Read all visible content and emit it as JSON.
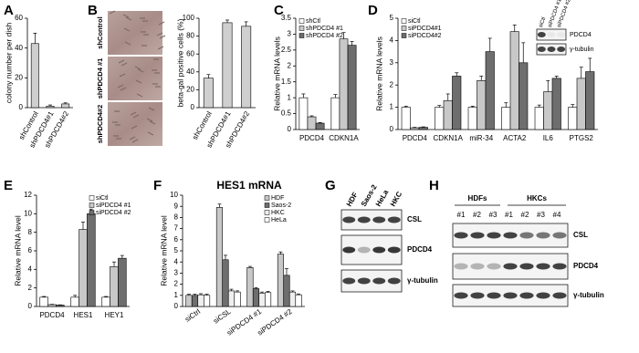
{
  "chart_data": [
    {
      "type": "bar",
      "panel": "A",
      "ylabel": "colony number per dish",
      "categories": [
        "shControl",
        "shPDCD4#1",
        "shPDCD4#2"
      ],
      "values": [
        43,
        1,
        2.5
      ],
      "errors": [
        7,
        0.8,
        0.7
      ],
      "color": "#cfcfcf",
      "ylim": [
        0,
        60
      ],
      "yticks": [
        0,
        20,
        40,
        60
      ]
    },
    {
      "type": "bar",
      "panel": "B",
      "ylabel": "beta-gal positive cells (%)",
      "categories": [
        "shControl",
        "shPDCD4#1",
        "shPDCD4#2"
      ],
      "values": [
        33,
        95,
        91
      ],
      "errors": [
        4,
        3,
        5
      ],
      "color": "#cfcfcf",
      "ylim": [
        0,
        100
      ],
      "yticks": [
        0,
        20,
        40,
        60,
        80,
        100
      ]
    },
    {
      "type": "bar",
      "panel": "C",
      "ylabel": "Relative mRNA levels",
      "categories": [
        "PDCD4",
        "CDKN1A"
      ],
      "legend": "upper left",
      "ylim": [
        0,
        3.5
      ],
      "yticks": [
        0,
        0.5,
        1,
        1.5,
        2,
        2.5,
        3,
        3.5
      ],
      "series": [
        {
          "name": "shCtl",
          "color": "#ffffff",
          "values": [
            1,
            1
          ],
          "errors": [
            0.12,
            0.1
          ]
        },
        {
          "name": "shPDCD4 #1",
          "color": "#c8c8c8",
          "values": [
            0.4,
            2.85
          ],
          "errors": [
            0.03,
            0.2
          ]
        },
        {
          "name": "shPDCD4 #2",
          "color": "#6e6e6e",
          "values": [
            0.2,
            2.65
          ],
          "errors": [
            0.02,
            0.12
          ]
        }
      ]
    },
    {
      "type": "bar",
      "panel": "D",
      "ylabel": "Relative mRNA levels",
      "categories": [
        "PDCD4",
        "CDKN1A",
        "miR-34",
        "ACTA2",
        "IL6",
        "PTGS2"
      ],
      "legend": "upper left",
      "ylim": [
        0,
        5
      ],
      "yticks": [
        0,
        1,
        2,
        3,
        4,
        5
      ],
      "series": [
        {
          "name": "siCtl",
          "color": "#ffffff",
          "values": [
            1,
            1,
            1,
            1,
            1,
            1
          ],
          "errors": [
            0.05,
            0.08,
            0.05,
            0.2,
            0.1,
            0.12
          ]
        },
        {
          "name": "siPDCD4#1",
          "color": "#c8c8c8",
          "values": [
            0.08,
            1.3,
            2.2,
            4.4,
            1.7,
            2.3
          ],
          "errors": [
            0.02,
            0.3,
            0.2,
            0.3,
            0.5,
            0.5
          ]
        },
        {
          "name": "siPDCD4#2",
          "color": "#6e6e6e",
          "values": [
            0.1,
            2.4,
            3.5,
            3.0,
            2.3,
            2.6
          ],
          "errors": [
            0.02,
            0.15,
            0.6,
            0.9,
            0.1,
            0.6
          ]
        }
      ]
    },
    {
      "type": "bar",
      "panel": "E",
      "ylabel": "Relative mRNA level",
      "categories": [
        "PDCD4",
        "HES1",
        "HEY1"
      ],
      "legend": "upper right",
      "ylim": [
        0,
        12
      ],
      "yticks": [
        0,
        2,
        4,
        6,
        8,
        10,
        12
      ],
      "series": [
        {
          "name": "siCtl",
          "color": "#ffffff",
          "values": [
            1,
            1,
            1
          ],
          "errors": [
            0.08,
            0.2,
            0.08
          ]
        },
        {
          "name": "siPDCD4 #1",
          "color": "#c8c8c8",
          "values": [
            0.2,
            8.3,
            4.3
          ],
          "errors": [
            0.03,
            0.8,
            0.5
          ]
        },
        {
          "name": "siPDCD4 #2",
          "color": "#6e6e6e",
          "values": [
            0.15,
            10,
            5.2
          ],
          "errors": [
            0.03,
            0.5,
            0.3
          ]
        }
      ]
    },
    {
      "type": "bar",
      "panel": "F",
      "title": "HES1 mRNA",
      "ylabel": "Relative mRNA level",
      "categories": [
        "siCtrl",
        "siCSL",
        "siPDCD4 #1",
        "siPDCD4 #2"
      ],
      "legend": "upper right",
      "ylim": [
        0,
        10
      ],
      "yticks": [
        0,
        1,
        2,
        3,
        4,
        5,
        6,
        7,
        8,
        9,
        10
      ],
      "series": [
        {
          "name": "HDF",
          "color": "#c8c8c8",
          "values": [
            1,
            8.9,
            3.5,
            4.7
          ],
          "errors": [
            0.1,
            0.3,
            0.1,
            0.2
          ]
        },
        {
          "name": "Saos-2",
          "color": "#6e6e6e",
          "values": [
            1,
            4.2,
            1.6,
            2.8
          ],
          "errors": [
            0.1,
            0.4,
            0.1,
            0.6
          ]
        },
        {
          "name": "HKC",
          "color": "#efefef",
          "values": [
            1.05,
            1.4,
            1.2,
            1.3
          ],
          "errors": [
            0.1,
            0.15,
            0.1,
            0.1
          ]
        },
        {
          "name": "HeLa",
          "color": "#ffffff",
          "values": [
            1,
            1.3,
            1.25,
            1.05
          ],
          "errors": [
            0.1,
            0.1,
            0.1,
            0.08
          ]
        }
      ]
    }
  ],
  "images": {
    "rows": [
      "shControl",
      "shPDCD4 #1",
      "shPDCD4#2"
    ]
  },
  "inset": {
    "lanes": [
      "siCtl",
      "siPDCD4 #1",
      "siPDCD4 #2"
    ],
    "rows": [
      "PDCD4",
      "γ-tubulin"
    ]
  },
  "blots": [
    {
      "panel": "G",
      "lanes": [
        "HDF",
        "Saos-2",
        "HeLa",
        "HKC"
      ],
      "rows": [
        "CSL",
        "PDCD4",
        "γ-tubulin"
      ]
    },
    {
      "panel": "H",
      "groups": [
        "HDFs",
        "HKCs"
      ],
      "lanes": [
        "#1",
        "#2",
        "#3",
        "#1",
        "#2",
        "#3",
        "#4"
      ],
      "rows": [
        "CSL",
        "PDCD4",
        "γ-tubulin"
      ]
    }
  ]
}
